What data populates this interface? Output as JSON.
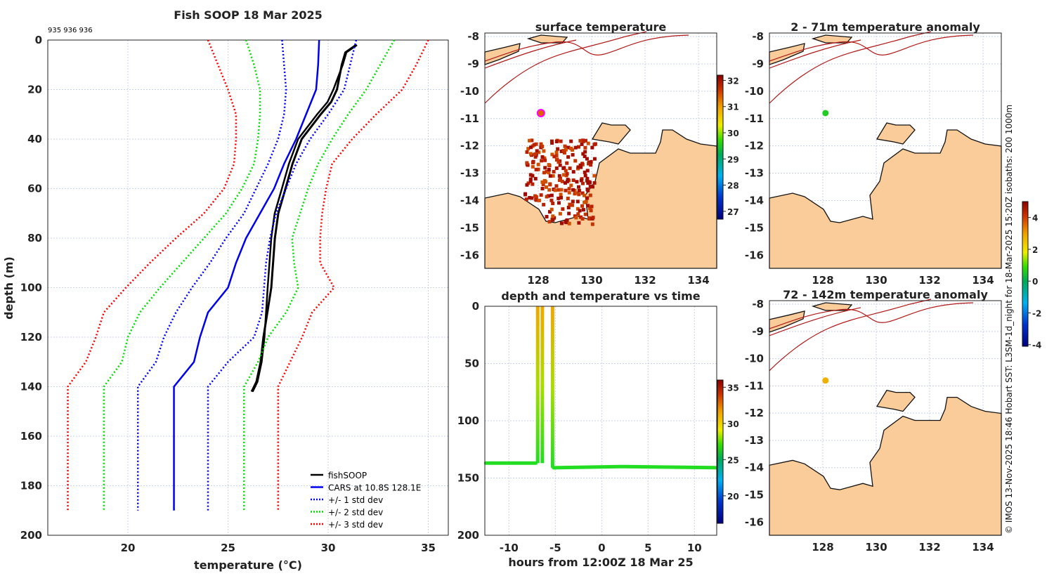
{
  "chart_data": [
    {
      "type": "line",
      "title": "Fish SOOP 18 Mar 2025",
      "subtitle": "935 936 936",
      "xlabel": "temperature (°C)",
      "ylabel": "depth (m)",
      "xlim": [
        16,
        36
      ],
      "ylim": [
        200,
        0
      ],
      "xticks": [
        20,
        25,
        30,
        35
      ],
      "yticks": [
        0,
        20,
        40,
        60,
        80,
        100,
        120,
        140,
        160,
        180,
        200
      ],
      "grid": true,
      "legend_position": "bottom-right",
      "depths": [
        0,
        10,
        20,
        30,
        40,
        50,
        60,
        70,
        80,
        90,
        100,
        110,
        120,
        130,
        140,
        190
      ],
      "series": [
        {
          "name": "fishSOOP",
          "color": "#000000",
          "style": "solid-thick",
          "depth": [
            2,
            5,
            10,
            20,
            25,
            30,
            40,
            50,
            60,
            70,
            80,
            100,
            120,
            130,
            138,
            142
          ],
          "temp": [
            31.39,
            30.86,
            30.68,
            30.44,
            30.15,
            29.63,
            28.68,
            28.22,
            27.87,
            27.51,
            27.34,
            27.16,
            26.77,
            26.63,
            26.42,
            26.18
          ]
        },
        {
          "name": "CARS at 10.8S 128.1E",
          "color": "#0000ee",
          "style": "solid",
          "temp": [
            29.55,
            29.5,
            29.4,
            28.9,
            28.4,
            27.8,
            27.3,
            26.6,
            25.9,
            25.4,
            25.0,
            24.0,
            23.6,
            23.3,
            22.3,
            22.3
          ]
        },
        {
          "name": "+/- 1 std dev",
          "color": "#0000ff",
          "style": "dotted",
          "lower": [
            27.7,
            27.8,
            27.9,
            27.8,
            27.5,
            27.0,
            26.4,
            25.8,
            24.9,
            24.1,
            23.2,
            22.4,
            21.8,
            21.4,
            20.5,
            20.5
          ],
          "upper": [
            31.4,
            31.1,
            30.8,
            30.0,
            29.1,
            28.4,
            27.9,
            27.4,
            27.1,
            26.9,
            26.8,
            26.7,
            26.3,
            25.0,
            24.0,
            24.0
          ]
        },
        {
          "name": "+/- 2 std dev",
          "color": "#00dd00",
          "style": "dotted",
          "lower": [
            25.9,
            26.3,
            26.6,
            26.6,
            26.5,
            26.3,
            25.7,
            24.9,
            23.8,
            22.7,
            21.6,
            20.6,
            20.0,
            19.7,
            18.8,
            18.8
          ],
          "upper": [
            33.3,
            32.6,
            31.9,
            31.0,
            30.2,
            29.5,
            29.0,
            28.6,
            28.2,
            28.3,
            28.5,
            27.9,
            27.0,
            26.5,
            25.8,
            25.8
          ]
        },
        {
          "name": "+/- 3 std dev",
          "color": "#ff0000",
          "style": "dotted",
          "lower": [
            24.0,
            24.5,
            25.0,
            25.4,
            25.4,
            25.3,
            24.8,
            23.8,
            22.4,
            21.1,
            19.9,
            18.8,
            18.4,
            17.9,
            17.0,
            17.0
          ],
          "upper": [
            35.0,
            34.4,
            33.7,
            32.4,
            31.2,
            30.2,
            29.9,
            29.7,
            29.6,
            29.6,
            30.3,
            29.2,
            28.7,
            28.1,
            27.5,
            27.5
          ]
        }
      ]
    },
    {
      "type": "heatmap",
      "title": "surface temperature",
      "xticks": [
        128,
        130,
        132,
        134
      ],
      "yticks": [
        -8,
        -9,
        -10,
        -11,
        -12,
        -13,
        -14,
        -15,
        -16
      ],
      "colorbar": {
        "ticks": [
          32,
          31,
          30,
          29,
          28,
          27
        ],
        "range": [
          26.7,
          32.2
        ]
      },
      "profile_location": {
        "lon": 128.1,
        "lat": -10.8
      }
    },
    {
      "type": "heatmap",
      "title": "2 - 71m temperature anomaly",
      "xticks": [
        128,
        130,
        132,
        134
      ],
      "yticks": [
        -8,
        -9,
        -10,
        -11,
        -12,
        -13,
        -14,
        -15,
        -16
      ],
      "colorbar": {
        "ticks": [
          4,
          2,
          0,
          -2,
          -4
        ],
        "range": [
          -4.1,
          5.0
        ]
      },
      "profile_location": {
        "lon": 128.1,
        "lat": -10.8,
        "value": 0.3
      }
    },
    {
      "type": "heatmap",
      "title": "72 - 142m temperature anomaly",
      "xticks": [
        128,
        130,
        132,
        134
      ],
      "yticks": [
        -8,
        -9,
        -10,
        -11,
        -12,
        -13,
        -14,
        -15,
        -16
      ],
      "profile_location": {
        "lon": 128.1,
        "lat": -10.8,
        "value": 2.8
      }
    },
    {
      "type": "scatter",
      "title": "depth and temperature vs time",
      "xlabel": "hours from 12:00Z 18 Mar 25",
      "xlim": [
        -12.6,
        12.4
      ],
      "ylim": [
        200,
        0
      ],
      "xticks": [
        -10,
        -5,
        0,
        5,
        10
      ],
      "yticks": [
        0,
        50,
        100,
        150,
        200
      ],
      "colorbar": {
        "ticks": [
          35,
          30,
          25,
          20
        ],
        "range": [
          16.2,
          36
        ]
      },
      "segments": [
        {
          "x": [
            -12.5,
            -7.1
          ],
          "depth": [
            137,
            137
          ],
          "temp": [
            26,
            26
          ]
        },
        {
          "x": [
            -6.9,
            -6.9
          ],
          "depth": [
            137,
            0
          ],
          "temp": [
            26,
            31
          ]
        },
        {
          "x": [
            -6.4,
            -6.4
          ],
          "depth": [
            137,
            0
          ],
          "temp": [
            26,
            31
          ]
        },
        {
          "x": [
            -5.3,
            -5.3
          ],
          "depth": [
            141,
            0
          ],
          "temp": [
            26,
            31
          ]
        },
        {
          "x": [
            -5.2,
            2,
            12.4
          ],
          "depth": [
            141,
            140,
            141
          ],
          "temp": [
            26,
            26,
            26
          ]
        }
      ]
    }
  ],
  "credit": "© IMOS 13-Nov-2025 18:46 Hobart SST: L3SM-1d_night for 18-Mar-2025 15:20Z isobaths: 200  1000m"
}
